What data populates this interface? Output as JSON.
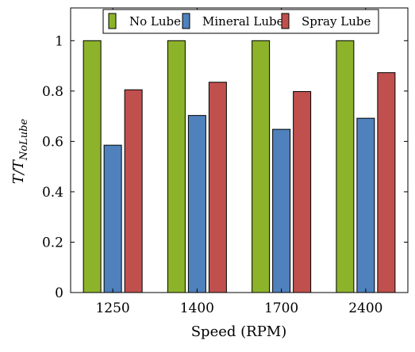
{
  "chart_data": {
    "type": "bar",
    "categories": [
      "1250",
      "1400",
      "1700",
      "2400"
    ],
    "series": [
      {
        "name": "No Lube",
        "values": [
          1.0,
          1.0,
          1.0,
          1.0
        ],
        "color": "#8db32b"
      },
      {
        "name": "Mineral Lube",
        "values": [
          0.585,
          0.703,
          0.648,
          0.692
        ],
        "color": "#4f81bd"
      },
      {
        "name": "Spray Lube",
        "values": [
          0.805,
          0.835,
          0.798,
          0.873
        ],
        "color": "#c0504d"
      }
    ],
    "xlabel": "Speed (RPM)",
    "ylabel": {
      "main": "T/T",
      "sub": "NoLube"
    },
    "ylim": [
      0,
      1.13
    ],
    "yticks": [
      "0",
      "0.2",
      "0.4",
      "0.6",
      "0.8",
      "1"
    ],
    "ytick_values": [
      0,
      0.2,
      0.4,
      0.6,
      0.8,
      1.0
    ],
    "legend_position": "top-center",
    "grid": false
  }
}
